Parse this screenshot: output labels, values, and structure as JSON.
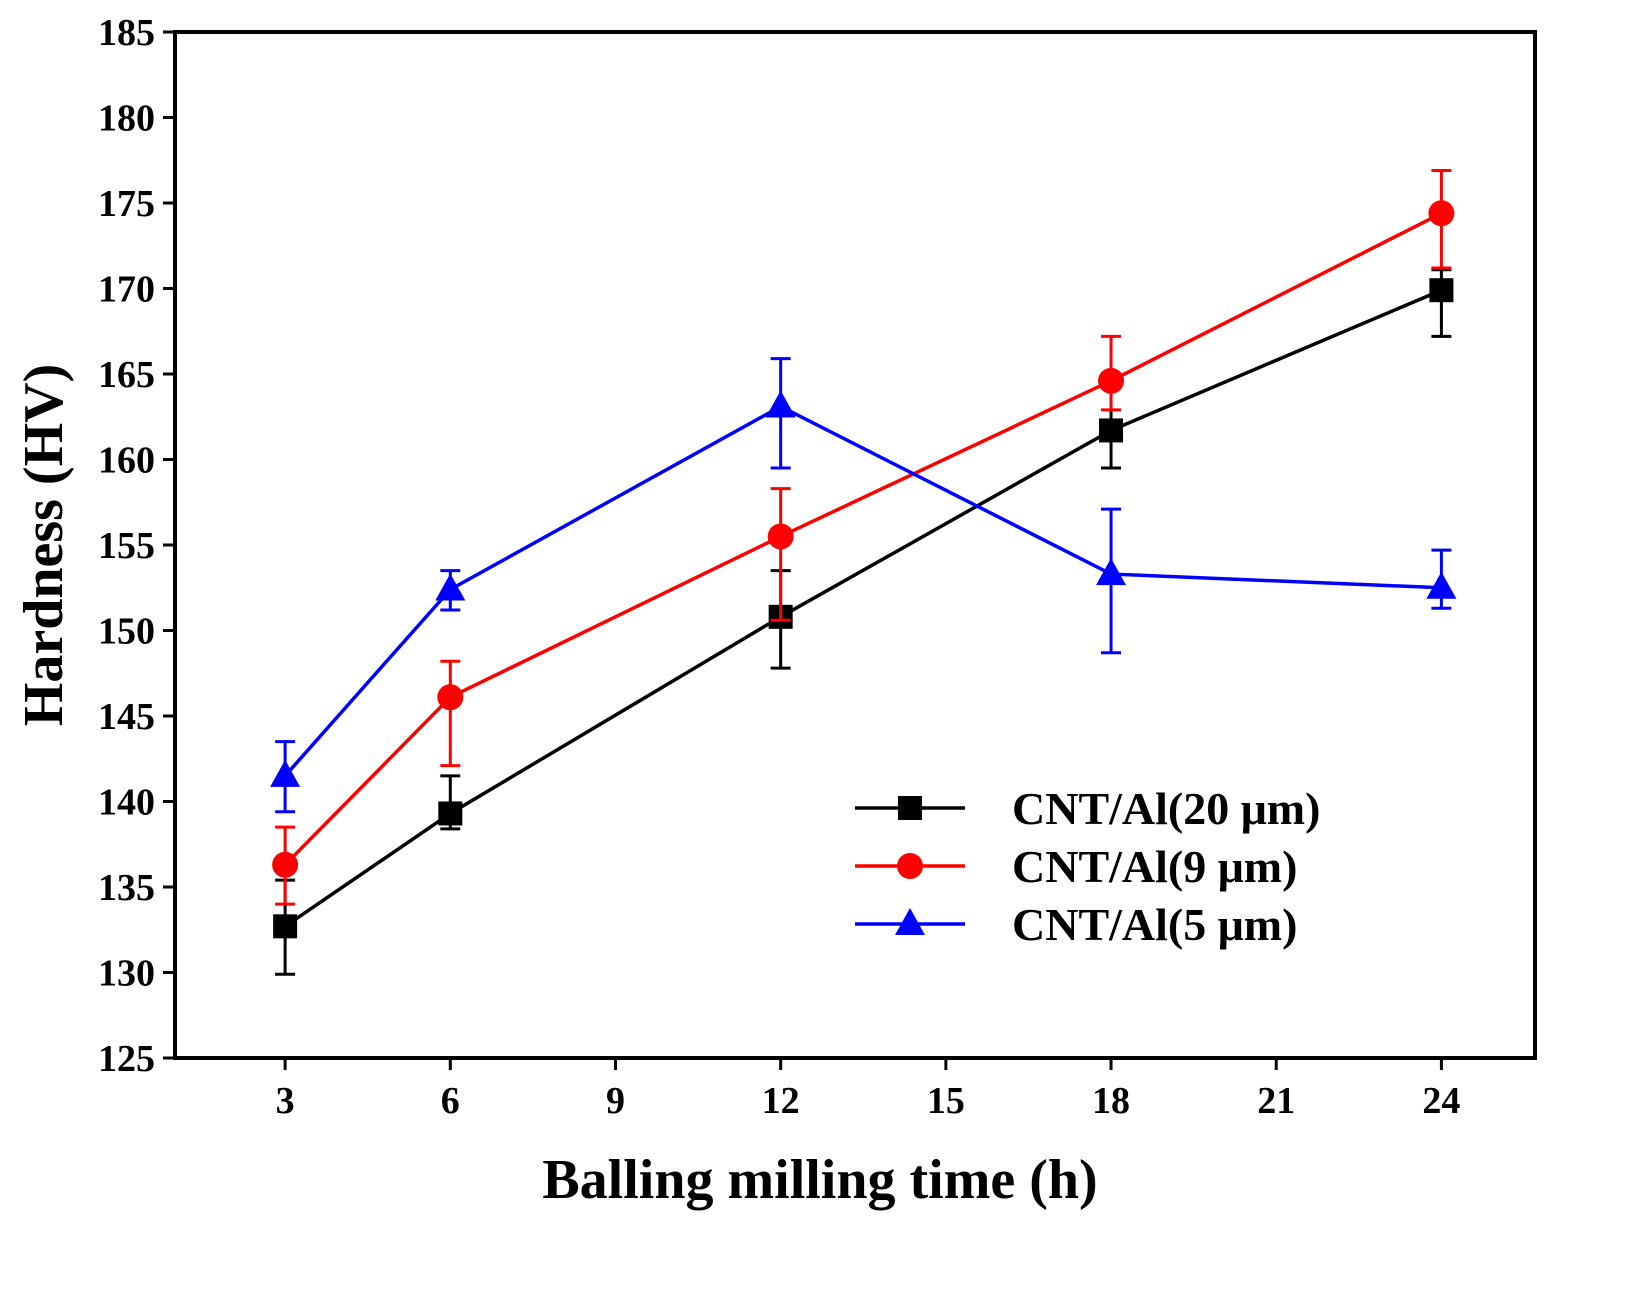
{
  "chart_data": {
    "type": "line",
    "title": "",
    "xlabel": "Balling milling time (h)",
    "ylabel": "Hardness (HV)",
    "xlim": [
      1,
      25.7
    ],
    "ylim": [
      125,
      185
    ],
    "xticks": [
      3,
      6,
      9,
      12,
      15,
      18,
      21,
      24
    ],
    "yticks": [
      125,
      130,
      135,
      140,
      145,
      150,
      155,
      160,
      165,
      170,
      175,
      180,
      185
    ],
    "grid": false,
    "legend_position": "lower-right",
    "x": [
      3,
      6,
      12,
      18,
      24
    ],
    "series": [
      {
        "name": "CNT/Al(20 μm)",
        "color": "#000000",
        "marker": "square",
        "values": [
          132.7,
          139.3,
          150.8,
          161.7,
          169.9
        ],
        "err_range": [
          [
            129.9,
            135.4
          ],
          [
            138.4,
            141.5
          ],
          [
            147.8,
            153.5
          ],
          [
            159.5,
            164.5
          ],
          [
            167.2,
            171.1
          ]
        ]
      },
      {
        "name": "CNT/Al(9 μm)",
        "color": "#ff0000",
        "marker": "circle",
        "values": [
          136.3,
          146.1,
          155.5,
          164.6,
          174.4
        ],
        "err_range": [
          [
            134.0,
            138.5
          ],
          [
            142.1,
            148.2
          ],
          [
            150.6,
            158.3
          ],
          [
            162.9,
            167.2
          ],
          [
            171.2,
            176.9
          ]
        ]
      },
      {
        "name": "CNT/Al(5 μm)",
        "color": "#0000ff",
        "marker": "triangle",
        "values": [
          141.5,
          152.4,
          163.1,
          153.3,
          152.5
        ],
        "err_range": [
          [
            139.4,
            143.5
          ],
          [
            151.2,
            153.5
          ],
          [
            159.5,
            165.9
          ],
          [
            148.7,
            157.1
          ],
          [
            151.3,
            154.7
          ]
        ]
      }
    ]
  }
}
